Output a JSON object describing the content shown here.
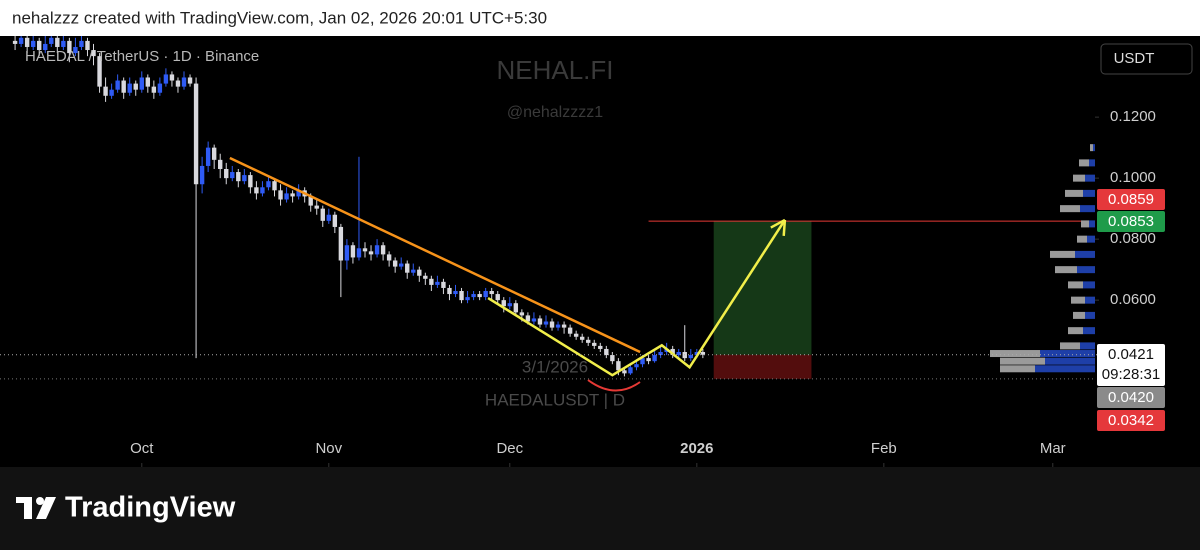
{
  "header": {
    "credit": "nehalzzz created with TradingView.com, Jan 02, 2026 20:01 UTC+5:30"
  },
  "footer": {
    "brand": "TradingView"
  },
  "chart_data": {
    "type": "candlestick",
    "title": "HAEDAL / TetherUS · 1D · Binance",
    "watermark": "NEHAL.FI",
    "handle": "@nehalzzzz1",
    "annotations": [
      "3/1/2026",
      "HAEDALUSDT | D"
    ],
    "currency_button": "USDT",
    "up_color": "#2f5bf5",
    "down_color": "#d9d9de",
    "xlim": [
      -23.5,
      158
    ],
    "ylim": [
      0.0053,
      0.1466
    ],
    "xticks": [
      {
        "value": 0,
        "label": "Oct"
      },
      {
        "value": 31,
        "label": "Nov"
      },
      {
        "value": 61,
        "label": "Dec"
      },
      {
        "value": 92,
        "label": "2026"
      },
      {
        "value": 123,
        "label": "Feb"
      },
      {
        "value": 151,
        "label": "Mar"
      }
    ],
    "yticks": [
      {
        "value": 0.12,
        "label": "0.1200"
      },
      {
        "value": 0.1,
        "label": "0.1000"
      },
      {
        "value": 0.08,
        "label": "0.0800"
      },
      {
        "value": 0.06,
        "label": "0.0600"
      }
    ],
    "x": [
      -21,
      -20,
      -19,
      -18,
      -17,
      -16,
      -15,
      -14,
      -13,
      -12,
      -11,
      -10,
      -9,
      -8,
      -7,
      -6,
      -5,
      -4,
      -3,
      -2,
      -1,
      0,
      1,
      2,
      3,
      4,
      5,
      6,
      7,
      8,
      9,
      10,
      11,
      12,
      13,
      14,
      15,
      16,
      17,
      18,
      19,
      20,
      21,
      22,
      23,
      24,
      25,
      26,
      27,
      28,
      29,
      30,
      31,
      32,
      33,
      34,
      35,
      36,
      37,
      38,
      39,
      40,
      41,
      42,
      43,
      44,
      45,
      46,
      47,
      48,
      49,
      50,
      51,
      52,
      53,
      54,
      55,
      56,
      57,
      58,
      59,
      60,
      61,
      62,
      63,
      64,
      65,
      66,
      67,
      68,
      69,
      70,
      71,
      72,
      73,
      74,
      75,
      76,
      77,
      78,
      79,
      80,
      81,
      82,
      83,
      84,
      85,
      86,
      87,
      88,
      89,
      90,
      91,
      92,
      93
    ],
    "candles": [
      [
        0.145,
        0.148,
        0.142,
        0.144
      ],
      [
        0.144,
        0.149,
        0.143,
        0.146
      ],
      [
        0.146,
        0.147,
        0.141,
        0.143
      ],
      [
        0.143,
        0.148,
        0.142,
        0.145
      ],
      [
        0.145,
        0.146,
        0.14,
        0.142
      ],
      [
        0.142,
        0.147,
        0.141,
        0.144
      ],
      [
        0.144,
        0.149,
        0.143,
        0.146
      ],
      [
        0.146,
        0.147,
        0.141,
        0.143
      ],
      [
        0.143,
        0.148,
        0.142,
        0.145
      ],
      [
        0.145,
        0.146,
        0.138,
        0.141
      ],
      [
        0.141,
        0.146,
        0.14,
        0.143
      ],
      [
        0.143,
        0.148,
        0.142,
        0.145
      ],
      [
        0.145,
        0.146,
        0.14,
        0.142
      ],
      [
        0.142,
        0.144,
        0.137,
        0.14
      ],
      [
        0.14,
        0.141,
        0.128,
        0.13
      ],
      [
        0.13,
        0.133,
        0.125,
        0.127
      ],
      [
        0.127,
        0.131,
        0.126,
        0.129
      ],
      [
        0.129,
        0.134,
        0.128,
        0.132
      ],
      [
        0.132,
        0.133,
        0.126,
        0.128
      ],
      [
        0.128,
        0.133,
        0.127,
        0.131
      ],
      [
        0.131,
        0.132,
        0.127,
        0.129
      ],
      [
        0.129,
        0.135,
        0.128,
        0.133
      ],
      [
        0.133,
        0.134,
        0.128,
        0.13
      ],
      [
        0.13,
        0.132,
        0.126,
        0.128
      ],
      [
        0.128,
        0.133,
        0.127,
        0.131
      ],
      [
        0.131,
        0.136,
        0.13,
        0.134
      ],
      [
        0.134,
        0.135,
        0.13,
        0.132
      ],
      [
        0.132,
        0.133,
        0.128,
        0.13
      ],
      [
        0.13,
        0.135,
        0.129,
        0.133
      ],
      [
        0.133,
        0.134,
        0.13,
        0.131
      ],
      [
        0.131,
        0.133,
        0.041,
        0.098
      ],
      [
        0.098,
        0.107,
        0.095,
        0.104
      ],
      [
        0.104,
        0.112,
        0.102,
        0.11
      ],
      [
        0.11,
        0.111,
        0.103,
        0.106
      ],
      [
        0.106,
        0.108,
        0.1,
        0.103
      ],
      [
        0.103,
        0.105,
        0.098,
        0.1
      ],
      [
        0.1,
        0.104,
        0.099,
        0.102
      ],
      [
        0.102,
        0.103,
        0.097,
        0.099
      ],
      [
        0.099,
        0.103,
        0.098,
        0.101
      ],
      [
        0.101,
        0.102,
        0.095,
        0.097
      ],
      [
        0.097,
        0.099,
        0.093,
        0.095
      ],
      [
        0.095,
        0.099,
        0.094,
        0.097
      ],
      [
        0.097,
        0.101,
        0.096,
        0.099
      ],
      [
        0.099,
        0.1,
        0.094,
        0.096
      ],
      [
        0.096,
        0.098,
        0.091,
        0.093
      ],
      [
        0.093,
        0.097,
        0.092,
        0.095
      ],
      [
        0.095,
        0.096,
        0.092,
        0.094
      ],
      [
        0.094,
        0.098,
        0.093,
        0.096
      ],
      [
        0.096,
        0.097,
        0.092,
        0.094
      ],
      [
        0.094,
        0.095,
        0.089,
        0.091
      ],
      [
        0.091,
        0.093,
        0.088,
        0.09
      ],
      [
        0.09,
        0.091,
        0.084,
        0.086
      ],
      [
        0.086,
        0.09,
        0.085,
        0.088
      ],
      [
        0.088,
        0.089,
        0.082,
        0.084
      ],
      [
        0.084,
        0.085,
        0.061,
        0.073
      ],
      [
        0.073,
        0.08,
        0.07,
        0.078
      ],
      [
        0.078,
        0.079,
        0.072,
        0.074
      ],
      [
        0.074,
        0.107,
        0.073,
        0.077
      ],
      [
        0.077,
        0.079,
        0.074,
        0.076
      ],
      [
        0.076,
        0.078,
        0.073,
        0.075
      ],
      [
        0.075,
        0.08,
        0.074,
        0.078
      ],
      [
        0.078,
        0.079,
        0.073,
        0.075
      ],
      [
        0.075,
        0.076,
        0.071,
        0.073
      ],
      [
        0.073,
        0.074,
        0.069,
        0.071
      ],
      [
        0.071,
        0.074,
        0.07,
        0.072
      ],
      [
        0.072,
        0.073,
        0.067,
        0.069
      ],
      [
        0.069,
        0.072,
        0.068,
        0.07
      ],
      [
        0.07,
        0.071,
        0.066,
        0.068
      ],
      [
        0.068,
        0.069,
        0.065,
        0.067
      ],
      [
        0.067,
        0.068,
        0.063,
        0.065
      ],
      [
        0.065,
        0.068,
        0.064,
        0.066
      ],
      [
        0.066,
        0.067,
        0.062,
        0.064
      ],
      [
        0.064,
        0.065,
        0.06,
        0.062
      ],
      [
        0.062,
        0.065,
        0.061,
        0.063
      ],
      [
        0.063,
        0.064,
        0.059,
        0.06
      ],
      [
        0.06,
        0.063,
        0.059,
        0.061
      ],
      [
        0.061,
        0.063,
        0.06,
        0.062
      ],
      [
        0.062,
        0.063,
        0.06,
        0.061
      ],
      [
        0.061,
        0.064,
        0.06,
        0.063
      ],
      [
        0.063,
        0.064,
        0.06,
        0.062
      ],
      [
        0.062,
        0.063,
        0.059,
        0.06
      ],
      [
        0.06,
        0.061,
        0.056,
        0.058
      ],
      [
        0.058,
        0.061,
        0.057,
        0.059
      ],
      [
        0.059,
        0.06,
        0.055,
        0.056
      ],
      [
        0.056,
        0.057,
        0.053,
        0.055
      ],
      [
        0.055,
        0.056,
        0.052,
        0.053
      ],
      [
        0.053,
        0.056,
        0.052,
        0.054
      ],
      [
        0.054,
        0.055,
        0.051,
        0.052
      ],
      [
        0.052,
        0.055,
        0.051,
        0.053
      ],
      [
        0.053,
        0.054,
        0.05,
        0.051
      ],
      [
        0.051,
        0.053,
        0.05,
        0.052
      ],
      [
        0.052,
        0.053,
        0.049,
        0.051
      ],
      [
        0.051,
        0.052,
        0.048,
        0.049
      ],
      [
        0.049,
        0.05,
        0.047,
        0.048
      ],
      [
        0.048,
        0.049,
        0.046,
        0.047
      ],
      [
        0.047,
        0.048,
        0.045,
        0.046
      ],
      [
        0.046,
        0.047,
        0.044,
        0.045
      ],
      [
        0.045,
        0.046,
        0.043,
        0.044
      ],
      [
        0.044,
        0.045,
        0.041,
        0.042
      ],
      [
        0.042,
        0.043,
        0.039,
        0.04
      ],
      [
        0.04,
        0.041,
        0.0354,
        0.037
      ],
      [
        0.037,
        0.038,
        0.035,
        0.036
      ],
      [
        0.036,
        0.039,
        0.0355,
        0.038
      ],
      [
        0.038,
        0.04,
        0.037,
        0.039
      ],
      [
        0.039,
        0.042,
        0.038,
        0.041
      ],
      [
        0.041,
        0.042,
        0.039,
        0.04
      ],
      [
        0.04,
        0.044,
        0.0395,
        0.042
      ],
      [
        0.042,
        0.045,
        0.041,
        0.043
      ],
      [
        0.043,
        0.046,
        0.042,
        0.044
      ],
      [
        0.044,
        0.045,
        0.041,
        0.042
      ],
      [
        0.042,
        0.044,
        0.041,
        0.043
      ],
      [
        0.043,
        0.0518,
        0.04,
        0.041
      ],
      [
        0.041,
        0.044,
        0.04,
        0.042
      ],
      [
        0.042,
        0.044,
        0.041,
        0.043
      ],
      [
        0.043,
        0.044,
        0.041,
        0.0421
      ]
    ],
    "volume_profile": {
      "prices": [
        0.11,
        0.105,
        0.1,
        0.095,
        0.09,
        0.085,
        0.08,
        0.075,
        0.07,
        0.065,
        0.06,
        0.055,
        0.05,
        0.045,
        0.0425,
        0.04,
        0.0375
      ],
      "down": [
        3,
        10,
        12,
        18,
        20,
        8,
        10,
        25,
        22,
        15,
        14,
        12,
        15,
        20,
        50,
        45,
        35
      ],
      "up": [
        2,
        6,
        10,
        12,
        15,
        6,
        8,
        20,
        18,
        12,
        10,
        10,
        12,
        15,
        55,
        50,
        60
      ]
    },
    "trendline": {
      "color": "#f7931a",
      "x": [
        14.6,
        82.6
      ],
      "y": [
        0.1066,
        0.043
      ]
    },
    "projection": {
      "color": "#f1ee4a",
      "x": [
        57.4,
        78,
        86.2,
        90.8,
        106.6
      ],
      "y": [
        0.0607,
        0.0354,
        0.0452,
        0.038,
        0.0863
      ]
    },
    "position": {
      "x": [
        94.8,
        111
      ],
      "entry": 0.0421,
      "target": 0.0859,
      "stop": 0.0342
    },
    "target_line": {
      "x": 84,
      "y": 0.0859,
      "color": "#e53935"
    },
    "price_labels": [
      0.0859,
      0.0853,
      0.0421,
      {
        "value": 0.042,
        "label": "0.0420"
      },
      0.0342
    ],
    "countdown": "09:28:31"
  }
}
